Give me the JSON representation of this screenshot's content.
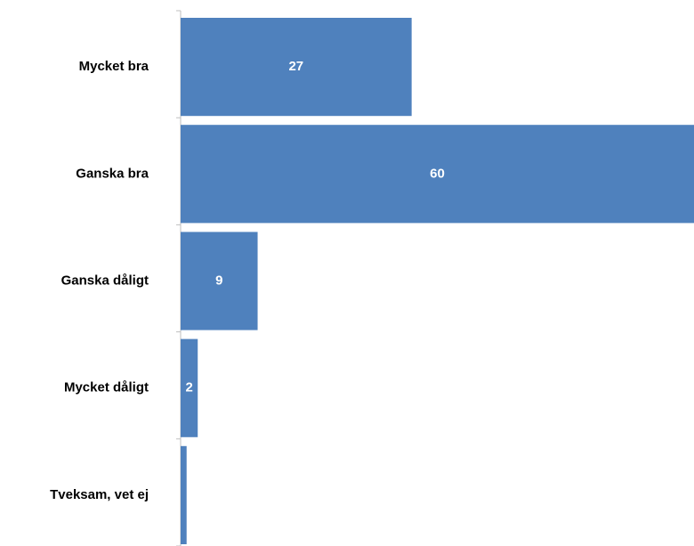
{
  "chart_data": {
    "type": "bar",
    "orientation": "horizontal",
    "categories": [
      "Mycket bra",
      "Ganska bra",
      "Ganska dåligt",
      "Mycket dåligt",
      "Tveksam, vet ej"
    ],
    "values": [
      27,
      60,
      9,
      2,
      0.7
    ],
    "value_labels": [
      "27",
      "60",
      "9",
      "2",
      null
    ],
    "color": "#4f81bd",
    "xlim": [
      0,
      60
    ]
  }
}
